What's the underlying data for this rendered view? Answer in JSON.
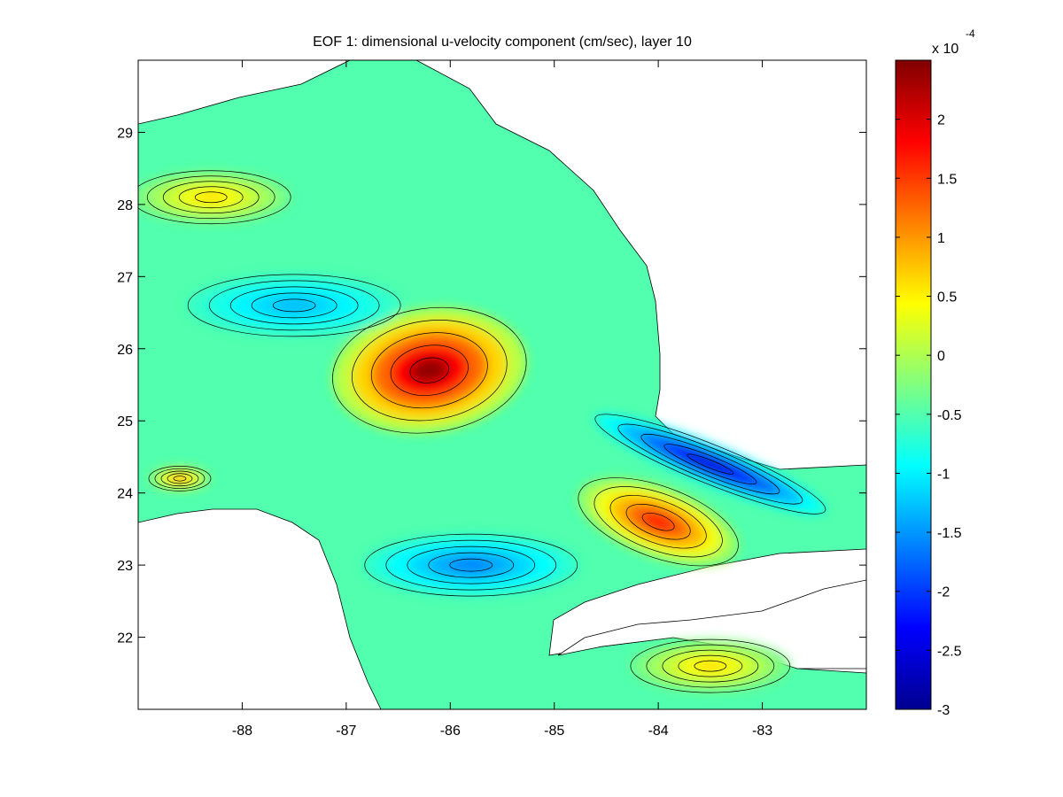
{
  "chart_data": {
    "type": "heatmap",
    "title": "EOF 1: dimensional u-velocity component (cm/sec), layer 10",
    "xlabel": "",
    "ylabel": "",
    "xlim": [
      -89,
      -82
    ],
    "ylim": [
      21,
      30
    ],
    "x_ticks": [
      -88,
      -87,
      -86,
      -85,
      -84,
      -83
    ],
    "y_ticks": [
      22,
      23,
      24,
      25,
      26,
      27,
      28,
      29
    ],
    "grid": false,
    "colorbar": {
      "range": [
        -3,
        2.5
      ],
      "ticks": [
        2,
        1.5,
        1,
        0.5,
        0,
        -0.5,
        -1,
        -1.5,
        -2,
        -2.5,
        -3
      ],
      "multiplier": "x 10",
      "exponent": "-4",
      "colormap": "jet"
    },
    "background_level": -0.5,
    "features": [
      {
        "kind": "positive-core",
        "lon": -86.2,
        "lat": 25.7,
        "value": 2.4
      },
      {
        "kind": "positive-lobe",
        "lon": -84.0,
        "lat": 23.6,
        "value": 1.7
      },
      {
        "kind": "negative-jet",
        "lon": -83.5,
        "lat": 24.4,
        "value": -2.6
      },
      {
        "kind": "negative-band",
        "lon": -87.5,
        "lat": 26.6,
        "value": -1.3
      },
      {
        "kind": "negative-band",
        "lon": -85.8,
        "lat": 23.0,
        "value": -1.6
      },
      {
        "kind": "positive-band",
        "lon": -88.3,
        "lat": 28.1,
        "value": 0.6
      },
      {
        "kind": "positive-band",
        "lon": -83.5,
        "lat": 21.6,
        "value": 0.6
      },
      {
        "kind": "positive-spot",
        "lon": -88.6,
        "lat": 24.2,
        "value": 1.0
      }
    ]
  }
}
